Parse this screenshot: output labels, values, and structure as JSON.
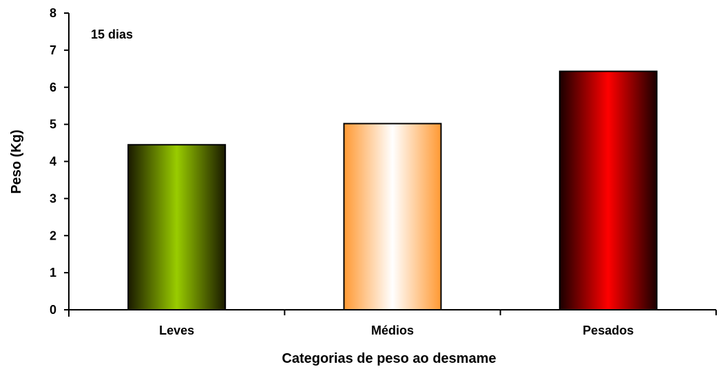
{
  "chart_data": {
    "type": "bar",
    "annotation": "15 dias",
    "xlabel": "Categorias de peso ao desmame",
    "ylabel": "Peso (Kg)",
    "categories": [
      "Leves",
      "Médios",
      "Pesados"
    ],
    "values": [
      4.45,
      5.02,
      6.43
    ],
    "ylim": [
      0,
      8
    ],
    "yticks": [
      0,
      1,
      2,
      3,
      4,
      5,
      6,
      7,
      8
    ],
    "grid": false,
    "legend": "none",
    "bar_colors": [
      {
        "edge": "#1a1a00",
        "center": "#99cc00"
      },
      {
        "edge": "#ff9933",
        "center": "#ffffff"
      },
      {
        "edge": "#1a0000",
        "center": "#ff0000"
      }
    ]
  }
}
